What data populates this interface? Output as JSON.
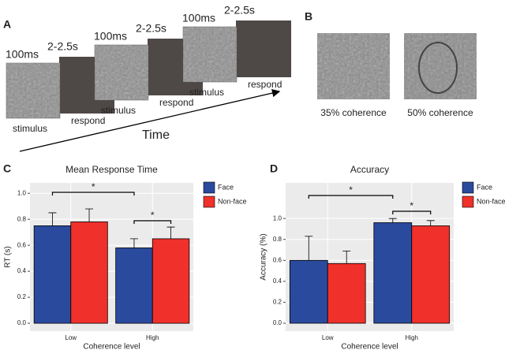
{
  "panel_a": {
    "label": "A",
    "trials": [
      {
        "duration": "100ms",
        "interval": "2-2.5s",
        "stimulus": "stimulus",
        "respond": "respond"
      },
      {
        "duration": "100ms",
        "interval": "2-2.5s",
        "stimulus": "stimulus",
        "respond": "respond"
      },
      {
        "duration": "100ms",
        "interval": "2-2.5s",
        "stimulus": "stimulus",
        "respond": "respond"
      }
    ],
    "axis": "Time"
  },
  "panel_b": {
    "label": "B",
    "images": [
      "35% coherence",
      "50% coherence"
    ]
  },
  "chart_data": [
    {
      "type": "bar",
      "panel": "C",
      "title": "Mean Response Time",
      "x_label": "Coherence level",
      "y_label": "RT (s)",
      "categories": [
        "Low",
        "High"
      ],
      "series": [
        {
          "name": "Face",
          "color": "#2a4a9e",
          "values": [
            0.75,
            0.58
          ],
          "errors": [
            0.1,
            0.07
          ]
        },
        {
          "name": "Non-face",
          "color": "#f0302a",
          "values": [
            0.78,
            0.65
          ],
          "errors": [
            0.1,
            0.09
          ]
        }
      ],
      "ylim": [
        -0.06,
        1.08
      ],
      "yticks": [
        {
          "value": 0,
          "label": "0.0"
        },
        0.2,
        0.4,
        0.6,
        0.8,
        {
          "value": 1,
          "label": "1.0"
        }
      ],
      "grid": true,
      "legend": "right",
      "annotations": [
        "*",
        "*"
      ]
    },
    {
      "type": "bar",
      "panel": "D",
      "title": "Accuracy",
      "x_label": "Coherence level",
      "y_label": "Accuracy (%)",
      "categories": [
        "Low",
        "High"
      ],
      "series": [
        {
          "name": "Face",
          "color": "#2a4a9e",
          "values": [
            0.6,
            0.96
          ],
          "errors": [
            0.23,
            0.04
          ]
        },
        {
          "name": "Non-face",
          "color": "#f0302a",
          "values": [
            0.57,
            0.93
          ],
          "errors": [
            0.12,
            0.05
          ]
        }
      ],
      "ylim": [
        -0.075,
        1.34
      ],
      "yticks": [
        {
          "value": 0,
          "label": "0.0"
        },
        0.2,
        0.4,
        0.6,
        0.8,
        {
          "value": 1,
          "label": "1.0"
        }
      ],
      "grid": true,
      "legend": "right",
      "annotations": [
        "*",
        "*"
      ]
    }
  ]
}
